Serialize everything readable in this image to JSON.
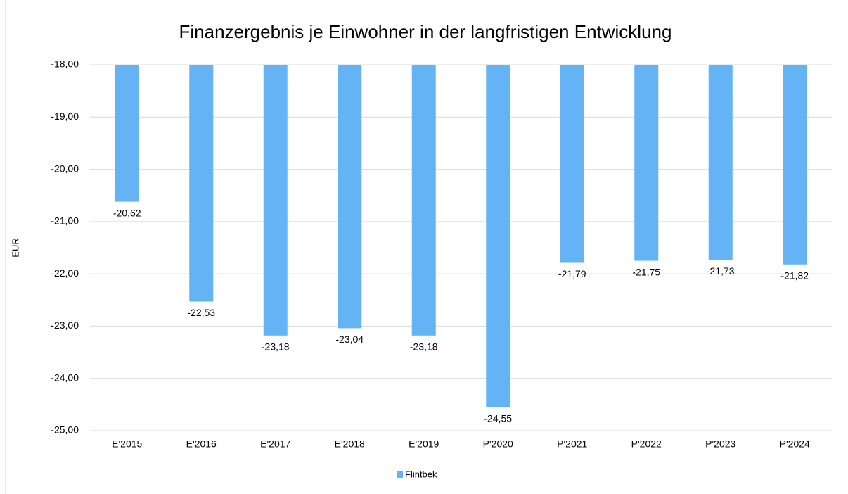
{
  "chart_data": {
    "type": "bar",
    "title": "Finanzergebnis je Einwohner in der langfristigen Entwicklung",
    "y_label": "EUR",
    "categories": [
      "E'2015",
      "E'2016",
      "E'2017",
      "E'2018",
      "E'2019",
      "P'2020",
      "P'2021",
      "P'2022",
      "P'2023",
      "P'2024"
    ],
    "series": [
      {
        "name": "Flintbek",
        "color": "#63b3f5",
        "values": [
          -20.62,
          -22.53,
          -23.18,
          -23.04,
          -23.18,
          -24.55,
          -21.79,
          -21.75,
          -21.73,
          -21.82
        ],
        "value_labels": [
          "-20,62",
          "-22,53",
          "-23,18",
          "-23,04",
          "-23,18",
          "-24,55",
          "-21,79",
          "-21,75",
          "-21,73",
          "-21,82"
        ]
      }
    ],
    "ylim": [
      -25,
      -18
    ],
    "yticks": [
      {
        "value": -18,
        "label": "-18,00"
      },
      {
        "value": -19,
        "label": "-19,00"
      },
      {
        "value": -20,
        "label": "-20,00"
      },
      {
        "value": -21,
        "label": "-21,00"
      },
      {
        "value": -22,
        "label": "-22,00"
      },
      {
        "value": -23,
        "label": "-23,00"
      },
      {
        "value": -24,
        "label": "-24,00"
      },
      {
        "value": -25,
        "label": "-25,00"
      }
    ],
    "grid": true,
    "legend": "bottom"
  }
}
